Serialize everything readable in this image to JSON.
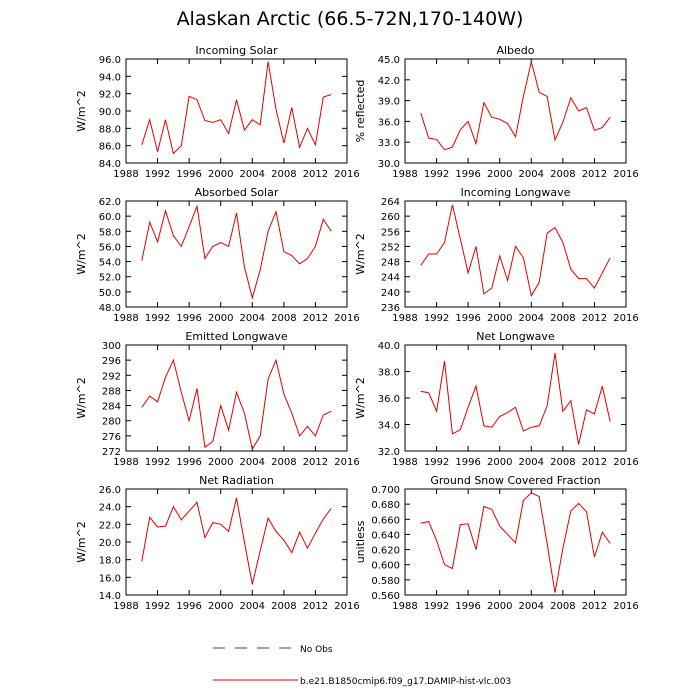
{
  "title": "Alaskan Arctic (66.5-72N,170-140W)",
  "legend": {
    "entries": [
      {
        "label": "No Obs",
        "color": "#4040a0",
        "style": "dashed"
      },
      {
        "label": "b.e21.B1850cmip6.f09_g17.DAMIP-hist-vlc.003",
        "color": "#e00000",
        "style": "solid"
      }
    ],
    "placement": "bottom-center"
  },
  "chart_data": [
    {
      "type": "line",
      "title": "Incoming Solar",
      "xlabel": "",
      "ylabel": "W/m^2",
      "xlim": [
        1988,
        2016
      ],
      "xticks": [
        1988,
        1992,
        1996,
        2000,
        2004,
        2008,
        2012,
        2016
      ],
      "ylim": [
        84,
        96
      ],
      "yticks": [
        "84.0",
        "86.0",
        "88.0",
        "90.0",
        "92.0",
        "94.0",
        "96.0"
      ],
      "series": [
        {
          "color": "#e00000",
          "x": [
            1990,
            1991,
            1992,
            1993,
            1994,
            1995,
            1996,
            1997,
            1998,
            1999,
            2000,
            2001,
            2002,
            2003,
            2004,
            2005,
            2006,
            2007,
            2008,
            2009,
            2010,
            2011,
            2012,
            2013,
            2014
          ],
          "y": [
            86.1,
            89.0,
            85.3,
            89.0,
            85.1,
            86.0,
            91.7,
            91.3,
            88.9,
            88.7,
            89.0,
            87.4,
            91.3,
            87.8,
            89.0,
            88.4,
            95.7,
            90.2,
            86.3,
            90.4,
            85.8,
            88.0,
            86.1,
            91.6,
            91.9
          ]
        }
      ]
    },
    {
      "type": "line",
      "title": "Albedo",
      "xlabel": "",
      "ylabel": "% reflected",
      "xlim": [
        1988,
        2016
      ],
      "xticks": [
        1988,
        1992,
        1996,
        2000,
        2004,
        2008,
        2012,
        2016
      ],
      "ylim": [
        30,
        45
      ],
      "yticks": [
        "30.0",
        "33.0",
        "36.0",
        "39.0",
        "42.0",
        "45.0"
      ],
      "series": [
        {
          "color": "#e00000",
          "x": [
            1990,
            1991,
            1992,
            1993,
            1994,
            1995,
            1996,
            1997,
            1998,
            1999,
            2000,
            2001,
            2002,
            2003,
            2004,
            2005,
            2006,
            2007,
            2008,
            2009,
            2010,
            2011,
            2012,
            2013,
            2014
          ],
          "y": [
            37.2,
            33.6,
            33.4,
            31.9,
            32.3,
            34.8,
            36.0,
            32.8,
            38.7,
            36.6,
            36.3,
            35.7,
            33.8,
            39.6,
            44.6,
            40.2,
            39.6,
            33.3,
            35.9,
            39.4,
            37.5,
            38.0,
            34.7,
            35.1,
            36.6
          ]
        }
      ]
    },
    {
      "type": "line",
      "title": "Absorbed Solar",
      "xlabel": "",
      "ylabel": "W/m^2",
      "xlim": [
        1988,
        2016
      ],
      "xticks": [
        1988,
        1992,
        1996,
        2000,
        2004,
        2008,
        2012,
        2016
      ],
      "ylim": [
        48,
        62
      ],
      "yticks": [
        "48.0",
        "50.0",
        "52.0",
        "54.0",
        "56.0",
        "58.0",
        "60.0",
        "62.0"
      ],
      "series": [
        {
          "color": "#e00000",
          "x": [
            1990,
            1991,
            1992,
            1993,
            1994,
            1995,
            1996,
            1997,
            1998,
            1999,
            2000,
            2001,
            2002,
            2003,
            2004,
            2005,
            2006,
            2007,
            2008,
            2009,
            2010,
            2011,
            2012,
            2013,
            2014
          ],
          "y": [
            54.1,
            59.2,
            56.6,
            60.7,
            57.4,
            56.0,
            58.6,
            61.3,
            54.4,
            56.0,
            56.5,
            56.0,
            60.4,
            53.3,
            49.2,
            52.9,
            58.0,
            60.6,
            55.3,
            54.8,
            53.7,
            54.4,
            56.0,
            59.6,
            58.0
          ]
        }
      ]
    },
    {
      "type": "line",
      "title": "Incoming Longwave",
      "xlabel": "",
      "ylabel": "W/m^2",
      "xlim": [
        1988,
        2016
      ],
      "xticks": [
        1988,
        1992,
        1996,
        2000,
        2004,
        2008,
        2012,
        2016
      ],
      "ylim": [
        236,
        264
      ],
      "yticks": [
        "236",
        "240",
        "244",
        "248",
        "252",
        "256",
        "260",
        "264"
      ],
      "series": [
        {
          "color": "#e00000",
          "x": [
            1990,
            1991,
            1992,
            1993,
            1994,
            1995,
            1996,
            1997,
            1998,
            1999,
            2000,
            2001,
            2002,
            2003,
            2004,
            2005,
            2006,
            2007,
            2008,
            2009,
            2010,
            2011,
            2012,
            2013,
            2014
          ],
          "y": [
            247.0,
            250.0,
            250.0,
            253.0,
            263.0,
            254.0,
            245.0,
            252.0,
            239.5,
            241.0,
            249.5,
            243.0,
            252.0,
            249.0,
            239.0,
            242.5,
            255.5,
            257.0,
            253.0,
            246.0,
            243.5,
            243.5,
            241.0,
            245.0,
            249.0
          ]
        }
      ]
    },
    {
      "type": "line",
      "title": "Emitted Longwave",
      "xlabel": "",
      "ylabel": "W/m^2",
      "xlim": [
        1988,
        2016
      ],
      "xticks": [
        1988,
        1992,
        1996,
        2000,
        2004,
        2008,
        2012,
        2016
      ],
      "ylim": [
        272,
        300
      ],
      "yticks": [
        "272",
        "276",
        "280",
        "284",
        "288",
        "292",
        "296",
        "300"
      ],
      "series": [
        {
          "color": "#e00000",
          "x": [
            1990,
            1991,
            1992,
            1993,
            1994,
            1995,
            1996,
            1997,
            1998,
            1999,
            2000,
            2001,
            2002,
            2003,
            2004,
            2005,
            2006,
            2007,
            2008,
            2009,
            2010,
            2011,
            2012,
            2013,
            2014
          ],
          "y": [
            283.5,
            286.5,
            285.0,
            291.5,
            296.0,
            287.5,
            280.0,
            288.5,
            273.0,
            274.5,
            284.0,
            277.5,
            287.5,
            282.0,
            272.5,
            276.0,
            291.0,
            296.0,
            287.0,
            282.0,
            276.0,
            278.5,
            276.0,
            281.5,
            282.5
          ]
        }
      ]
    },
    {
      "type": "line",
      "title": "Net Longwave",
      "xlabel": "",
      "ylabel": "W/m^2",
      "xlim": [
        1988,
        2016
      ],
      "xticks": [
        1988,
        1992,
        1996,
        2000,
        2004,
        2008,
        2012,
        2016
      ],
      "ylim": [
        32,
        40
      ],
      "yticks": [
        "32.0",
        "34.0",
        "36.0",
        "38.0",
        "40.0"
      ],
      "series": [
        {
          "color": "#e00000",
          "x": [
            1990,
            1991,
            1992,
            1993,
            1994,
            1995,
            1996,
            1997,
            1998,
            1999,
            2000,
            2001,
            2002,
            2003,
            2004,
            2005,
            2006,
            2007,
            2008,
            2009,
            2010,
            2011,
            2012,
            2013,
            2014
          ],
          "y": [
            36.5,
            36.4,
            35.0,
            38.8,
            33.3,
            33.6,
            35.3,
            36.9,
            33.9,
            33.8,
            34.6,
            34.9,
            35.3,
            33.5,
            33.8,
            33.9,
            35.4,
            39.4,
            35.0,
            35.8,
            32.5,
            35.1,
            34.8,
            36.9,
            34.2
          ]
        }
      ]
    },
    {
      "type": "line",
      "title": "Net Radiation",
      "xlabel": "",
      "ylabel": "W/m^2",
      "xlim": [
        1988,
        2016
      ],
      "xticks": [
        1988,
        1992,
        1996,
        2000,
        2004,
        2008,
        2012,
        2016
      ],
      "ylim": [
        14,
        26
      ],
      "yticks": [
        "14.0",
        "16.0",
        "18.0",
        "20.0",
        "22.0",
        "24.0",
        "26.0"
      ],
      "series": [
        {
          "color": "#e00000",
          "x": [
            1990,
            1991,
            1992,
            1993,
            1994,
            1995,
            1996,
            1997,
            1998,
            1999,
            2000,
            2001,
            2002,
            2003,
            2004,
            2005,
            2006,
            2007,
            2008,
            2009,
            2010,
            2011,
            2012,
            2013,
            2014
          ],
          "y": [
            17.8,
            22.8,
            21.7,
            21.8,
            24.0,
            22.5,
            23.5,
            24.5,
            20.5,
            22.2,
            22.0,
            21.2,
            25.0,
            20.0,
            15.2,
            19.0,
            22.7,
            21.2,
            20.2,
            18.8,
            21.1,
            19.3,
            21.0,
            22.6,
            23.8
          ]
        }
      ]
    },
    {
      "type": "line",
      "title": "Ground Snow Covered Fraction",
      "xlabel": "",
      "ylabel": "unitless",
      "xlim": [
        1988,
        2016
      ],
      "xticks": [
        1988,
        1992,
        1996,
        2000,
        2004,
        2008,
        2012,
        2016
      ],
      "ylim": [
        0.56,
        0.7
      ],
      "yticks": [
        "0.560",
        "0.580",
        "0.600",
        "0.620",
        "0.640",
        "0.660",
        "0.680",
        "0.700"
      ],
      "series": [
        {
          "color": "#e00000",
          "x": [
            1990,
            1991,
            1992,
            1993,
            1994,
            1995,
            1996,
            1997,
            1998,
            1999,
            2000,
            2001,
            2002,
            2003,
            2004,
            2005,
            2006,
            2007,
            2008,
            2009,
            2010,
            2011,
            2012,
            2013,
            2014
          ],
          "y": [
            0.655,
            0.657,
            0.632,
            0.6,
            0.595,
            0.653,
            0.654,
            0.62,
            0.677,
            0.673,
            0.651,
            0.64,
            0.629,
            0.685,
            0.695,
            0.69,
            0.628,
            0.563,
            0.622,
            0.671,
            0.681,
            0.67,
            0.61,
            0.643,
            0.628
          ]
        }
      ]
    }
  ]
}
